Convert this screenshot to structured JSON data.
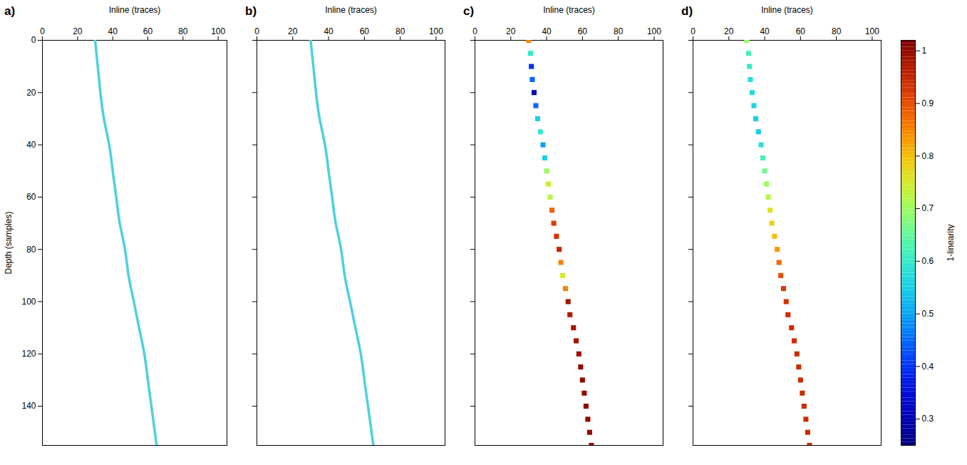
{
  "chart_data": [
    {
      "type": "line",
      "title": "a)",
      "x_label": "Inline (traces)",
      "y_label": "Depth (samples)",
      "xlim": [
        0,
        105
      ],
      "ylim": [
        155,
        0
      ],
      "xticks": [
        0,
        20,
        40,
        60,
        80,
        100
      ],
      "yticks": [
        0,
        20,
        40,
        60,
        80,
        100,
        120,
        140
      ],
      "grid": false,
      "color": "#4dd0e1",
      "y": [
        0,
        10,
        20,
        30,
        40,
        50,
        60,
        70,
        80,
        90,
        100,
        110,
        120,
        130,
        140,
        150,
        155
      ],
      "x": [
        30,
        31.5,
        33,
        35,
        38,
        40,
        42,
        44,
        47,
        49,
        52,
        55,
        58,
        60,
        62,
        64,
        65
      ]
    },
    {
      "type": "line",
      "title": "b)",
      "x_label": "Inline (traces)",
      "xlim": [
        0,
        105
      ],
      "ylim": [
        155,
        0
      ],
      "xticks": [
        0,
        20,
        40,
        60,
        80,
        100
      ],
      "yticks": [
        0,
        20,
        40,
        60,
        80,
        100,
        120,
        140
      ],
      "grid": false,
      "tick_labels": "x",
      "color": "#4dd0e1",
      "y": [
        0,
        10,
        20,
        30,
        40,
        50,
        60,
        70,
        80,
        90,
        100,
        110,
        120,
        130,
        140,
        150,
        155
      ],
      "x": [
        30,
        31.5,
        33,
        35,
        38,
        40,
        42,
        44,
        47,
        49,
        52,
        55,
        58,
        60,
        62,
        64,
        65
      ]
    },
    {
      "type": "scatter",
      "title": "c)",
      "x_label": "Inline (traces)",
      "marker": "square",
      "xlim": [
        0,
        105
      ],
      "ylim": [
        155,
        0
      ],
      "xticks": [
        0,
        20,
        40,
        60,
        80,
        100
      ],
      "yticks": [
        0,
        20,
        40,
        60,
        80,
        100,
        120,
        140
      ],
      "grid": false,
      "tick_labels": "x",
      "y": [
        0,
        5,
        10,
        15,
        20,
        25,
        30,
        35,
        40,
        45,
        50,
        55,
        60,
        65,
        70,
        75,
        80,
        85,
        90,
        95,
        100,
        105,
        110,
        115,
        120,
        125,
        130,
        135,
        140,
        145,
        150,
        155
      ],
      "x": [
        30,
        31,
        31.5,
        32,
        33,
        34,
        35,
        36.5,
        38,
        39,
        40,
        41,
        42,
        43,
        44,
        45.5,
        47,
        48,
        49,
        50.5,
        52,
        53,
        55,
        56.5,
        58,
        59,
        60,
        61,
        62,
        63,
        64,
        65
      ],
      "values": [
        0.85,
        0.6,
        0.4,
        0.45,
        0.3,
        0.45,
        0.55,
        0.6,
        0.5,
        0.55,
        0.7,
        0.75,
        0.72,
        0.88,
        0.92,
        0.93,
        0.95,
        0.85,
        0.75,
        0.85,
        0.98,
        0.97,
        0.98,
        0.98,
        0.99,
        1.0,
        1.0,
        1.0,
        1.0,
        1.0,
        1.0,
        1.0
      ]
    },
    {
      "type": "scatter",
      "title": "d)",
      "x_label": "Inline (traces)",
      "marker": "square",
      "xlim": [
        0,
        105
      ],
      "ylim": [
        155,
        0
      ],
      "xticks": [
        0,
        20,
        40,
        60,
        80,
        100
      ],
      "yticks": [
        0,
        20,
        40,
        60,
        80,
        100,
        120,
        140
      ],
      "grid": false,
      "tick_labels": "x",
      "y": [
        0,
        5,
        10,
        15,
        20,
        25,
        30,
        35,
        40,
        45,
        50,
        55,
        60,
        65,
        70,
        75,
        80,
        85,
        90,
        95,
        100,
        105,
        110,
        115,
        120,
        125,
        130,
        135,
        140,
        145,
        150,
        155
      ],
      "x": [
        30,
        31,
        31.5,
        32,
        33,
        34,
        35,
        36.5,
        38,
        39,
        40,
        41,
        42,
        43,
        44,
        45.5,
        47,
        48,
        49,
        50.5,
        52,
        53,
        55,
        56.5,
        58,
        59,
        60,
        61,
        62,
        63,
        64,
        65
      ],
      "values": [
        0.7,
        0.62,
        0.6,
        0.58,
        0.57,
        0.56,
        0.55,
        0.55,
        0.58,
        0.62,
        0.66,
        0.7,
        0.72,
        0.76,
        0.78,
        0.8,
        0.83,
        0.87,
        0.9,
        0.92,
        0.93,
        0.94,
        0.94,
        0.94,
        0.94,
        0.94,
        0.94,
        0.94,
        0.94,
        0.94,
        0.94,
        0.94
      ]
    }
  ],
  "colorbar": {
    "label": "1-linearity",
    "range": [
      0.25,
      1.02
    ],
    "ticks": [
      0.3,
      0.4,
      0.5,
      0.6,
      0.7,
      0.8,
      0.9,
      1
    ]
  }
}
